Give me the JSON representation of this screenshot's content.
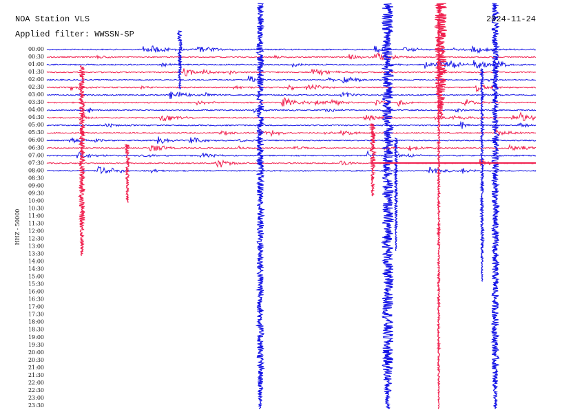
{
  "header": {
    "station": "NOA Station VLS",
    "date": "2024-11-24",
    "filter": "Applied filter: WWSSN-SP"
  },
  "axis": {
    "channel": "HHZ - 50000",
    "times": [
      "00:00",
      "00:30",
      "01:00",
      "01:30",
      "02:00",
      "02:30",
      "03:00",
      "03:30",
      "04:00",
      "04:30",
      "05:00",
      "05:30",
      "06:00",
      "06:30",
      "07:00",
      "07:30",
      "08:00",
      "08:30",
      "09:00",
      "09:30",
      "10:00",
      "10:30",
      "11:00",
      "11:30",
      "12:00",
      "12:30",
      "13:00",
      "13:30",
      "14:00",
      "14:30",
      "15:00",
      "15:30",
      "16:00",
      "16:30",
      "17:00",
      "17:30",
      "18:00",
      "18:30",
      "19:00",
      "19:30",
      "20:00",
      "20:30",
      "21:00",
      "21:30",
      "22:00",
      "22:30",
      "23:00",
      "23:30"
    ]
  }
}
